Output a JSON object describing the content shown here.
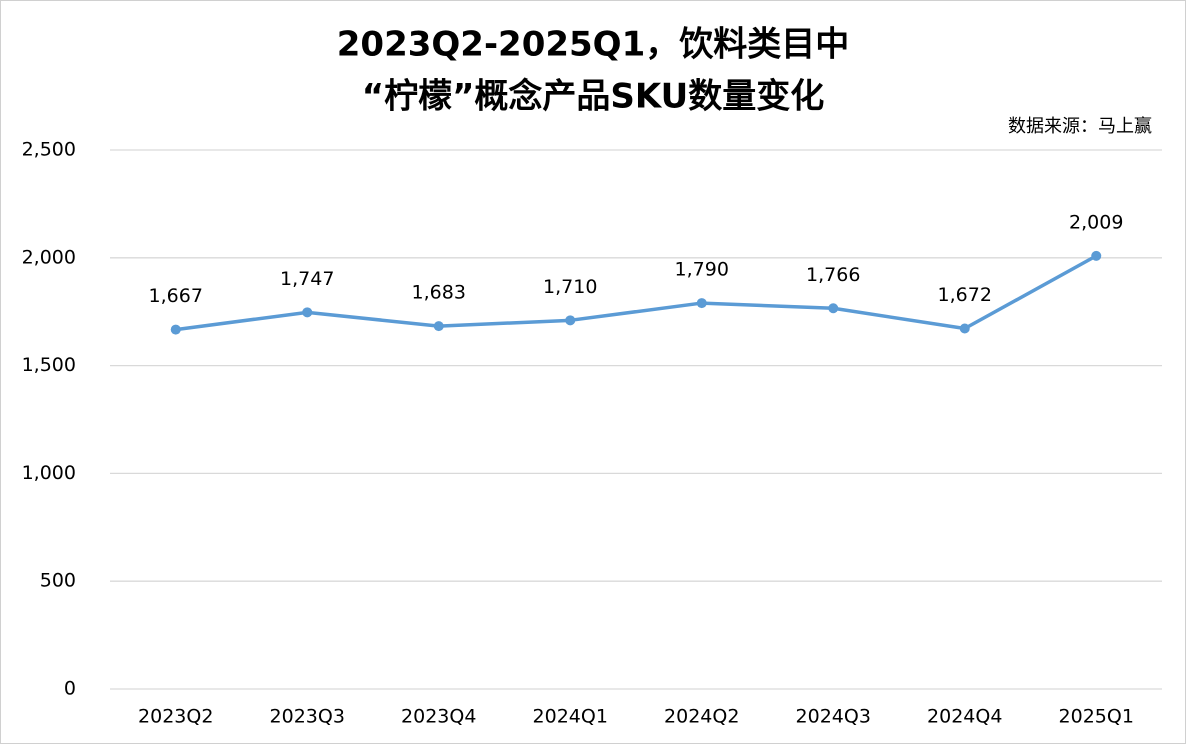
{
  "chart_data": {
    "type": "line",
    "title": [
      "2023Q2-2025Q1，饮料类目中",
      "“柠檬”概念产品SKU数量变化"
    ],
    "annotation": "数据来源：马上赢",
    "categories": [
      "2023Q2",
      "2023Q3",
      "2023Q4",
      "2024Q1",
      "2024Q2",
      "2024Q3",
      "2024Q4",
      "2025Q1"
    ],
    "series": [
      {
        "name": "SKU数量",
        "color": "#5b9bd5",
        "values": [
          1667,
          1747,
          1683,
          1710,
          1790,
          1766,
          1672,
          2009
        ],
        "value_labels": [
          "1,667",
          "1,747",
          "1,683",
          "1,710",
          "1,790",
          "1,766",
          "1,672",
          "2,009"
        ]
      }
    ],
    "ylim": [
      0,
      2500
    ],
    "yticks": [
      0,
      500,
      {
        "value": 1000,
        "label": "1,000"
      },
      {
        "value": 1500,
        "label": "1,500"
      },
      {
        "value": 2000,
        "label": "2,000"
      },
      {
        "value": 2500,
        "label": "2,500"
      }
    ],
    "grid": true,
    "legend": false
  }
}
